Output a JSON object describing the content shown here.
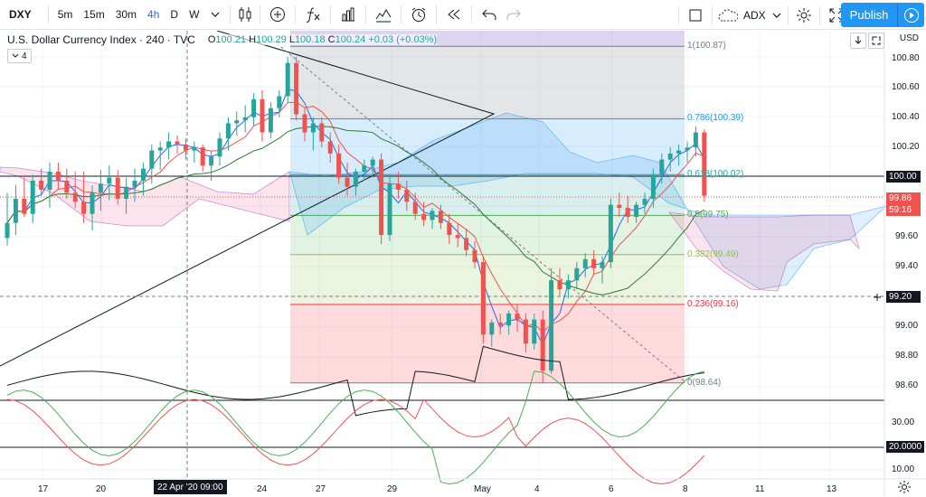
{
  "toolbar": {
    "symbol": "DXY",
    "timeframes": [
      "5m",
      "15m",
      "30m",
      "4h",
      "D",
      "W"
    ],
    "active_timeframe": "4h",
    "compare_label": "ADX",
    "publish_label": "Publish"
  },
  "legend": {
    "title": "U.S. Dollar Currency Index · 240 · TVC",
    "o_label": "O",
    "o": "100.21",
    "h_label": "H",
    "h": "100.29",
    "l_label": "L",
    "l": "100.18",
    "c_label": "C",
    "c": "100.24",
    "change": "+0.03 (+0.03%)",
    "collapse": "4"
  },
  "price_axis": {
    "currency": "USD",
    "labels": [
      "100.80",
      "100.60",
      "100.40",
      "100.20",
      "100.00",
      "99.60",
      "99.40",
      "99.00",
      "98.80",
      "98.60"
    ],
    "current_price": "99.86",
    "countdown": "59:16",
    "level_100": "100.00",
    "crosshair_price": "99.20"
  },
  "osc_axis": {
    "labels": [
      "30.00",
      "20.0000",
      "10.00"
    ]
  },
  "fib_levels": [
    {
      "label": "1(100.87)",
      "price": 100.87,
      "color": "#787b86"
    },
    {
      "label": "0.786(100.39)",
      "price": 100.39,
      "color": "#2196f3"
    },
    {
      "label": "0.618(100.02)",
      "price": 100.02,
      "color": "#26a69a"
    },
    {
      "label": "0.5(99.75)",
      "price": 99.75,
      "color": "#4caf50"
    },
    {
      "label": "0.382(99.49)",
      "price": 99.49,
      "color": "#8bc34a"
    },
    {
      "label": "0.236(99.16)",
      "price": 99.16,
      "color": "#f23645"
    },
    {
      "label": "0(98.64)",
      "price": 98.64,
      "color": "#787b86"
    }
  ],
  "time_axis": {
    "labels": [
      "17",
      "20",
      "24",
      "27",
      "29",
      "May",
      "4",
      "6",
      "8",
      "11",
      "13"
    ],
    "crosshair_time": "22 Apr '20  09:00"
  },
  "colors": {
    "up": "#26a69a",
    "down": "#ef5350",
    "accent": "#2196f3"
  }
}
